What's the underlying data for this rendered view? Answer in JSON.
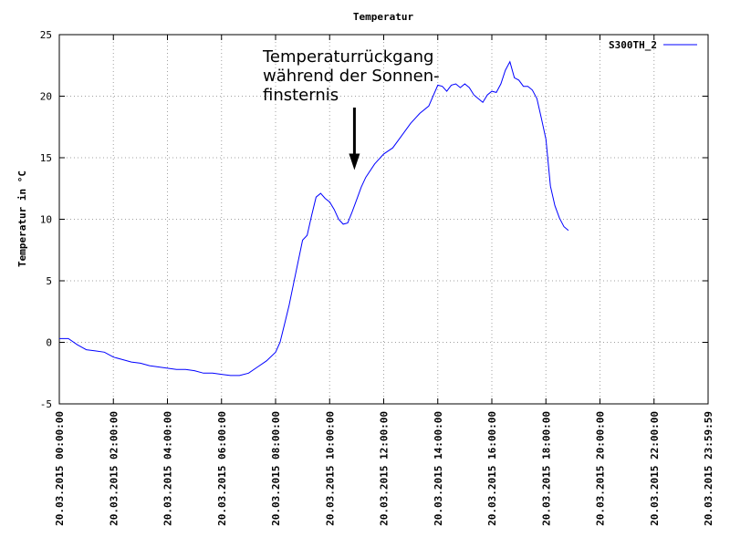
{
  "chart_data": {
    "type": "line",
    "title": "Temperatur",
    "xlabel": "",
    "ylabel": "Temperatur in °C",
    "ylim": [
      -5,
      25
    ],
    "yticks": [
      -5,
      0,
      5,
      10,
      15,
      20,
      25
    ],
    "xlim_hours": [
      0,
      24
    ],
    "grid": true,
    "legend_position": "top-right",
    "x_tick_labels": [
      "20.03.2015 00:00:00",
      "20.03.2015 02:00:00",
      "20.03.2015 04:00:00",
      "20.03.2015 06:00:00",
      "20.03.2015 08:00:00",
      "20.03.2015 10:00:00",
      "20.03.2015 12:00:00",
      "20.03.2015 14:00:00",
      "20.03.2015 16:00:00",
      "20.03.2015 18:00:00",
      "20.03.2015 20:00:00",
      "20.03.2015 22:00:00",
      "20.03.2015 23:59:59"
    ],
    "annotation": {
      "lines": [
        "Temperaturrückgang",
        "während der Sonnen-",
        "finsternis"
      ],
      "arrow_time": "10:55",
      "arrow_value": 14
    },
    "series": [
      {
        "name": "S300TH_2",
        "color": "#0000ff",
        "x": [
          "00:00",
          "00:20",
          "00:40",
          "01:00",
          "01:20",
          "01:40",
          "02:00",
          "02:20",
          "02:40",
          "03:00",
          "03:20",
          "03:40",
          "04:00",
          "04:20",
          "04:40",
          "05:00",
          "05:20",
          "05:40",
          "06:00",
          "06:20",
          "06:40",
          "07:00",
          "07:20",
          "07:40",
          "08:00",
          "08:10",
          "08:20",
          "08:30",
          "08:40",
          "09:00",
          "09:10",
          "09:20",
          "09:30",
          "09:40",
          "09:50",
          "10:00",
          "10:10",
          "10:20",
          "10:30",
          "10:40",
          "10:50",
          "11:00",
          "11:10",
          "11:20",
          "11:40",
          "12:00",
          "12:20",
          "12:40",
          "13:00",
          "13:20",
          "13:40",
          "14:00",
          "14:10",
          "14:20",
          "14:30",
          "14:40",
          "14:50",
          "15:00",
          "15:10",
          "15:20",
          "15:30",
          "15:40",
          "15:50",
          "16:00",
          "16:10",
          "16:20",
          "16:30",
          "16:40",
          "16:50",
          "17:00",
          "17:10",
          "17:20",
          "17:30",
          "17:40",
          "17:50",
          "18:00",
          "18:10",
          "18:20",
          "18:30",
          "18:40",
          "18:50"
        ],
        "y": [
          0.3,
          0.3,
          -0.2,
          -0.6,
          -0.7,
          -0.8,
          -1.2,
          -1.4,
          -1.6,
          -1.7,
          -1.9,
          -2.0,
          -2.1,
          -2.2,
          -2.2,
          -2.3,
          -2.5,
          -2.5,
          -2.6,
          -2.7,
          -2.7,
          -2.5,
          -2.0,
          -1.5,
          -0.8,
          0.0,
          1.5,
          3.0,
          4.8,
          8.3,
          8.7,
          10.3,
          11.8,
          12.1,
          11.7,
          11.4,
          10.8,
          10.0,
          9.6,
          9.7,
          10.6,
          11.6,
          12.6,
          13.4,
          14.5,
          15.3,
          15.8,
          16.8,
          17.8,
          18.6,
          19.2,
          20.9,
          20.8,
          20.4,
          20.9,
          21.0,
          20.7,
          21.0,
          20.7,
          20.1,
          19.8,
          19.5,
          20.1,
          20.4,
          20.3,
          21.0,
          22.1,
          22.8,
          21.5,
          21.3,
          20.8,
          20.8,
          20.5,
          19.8,
          18.2,
          16.5,
          12.7,
          11.1,
          10.1,
          9.4,
          9.1
        ]
      }
    ]
  }
}
